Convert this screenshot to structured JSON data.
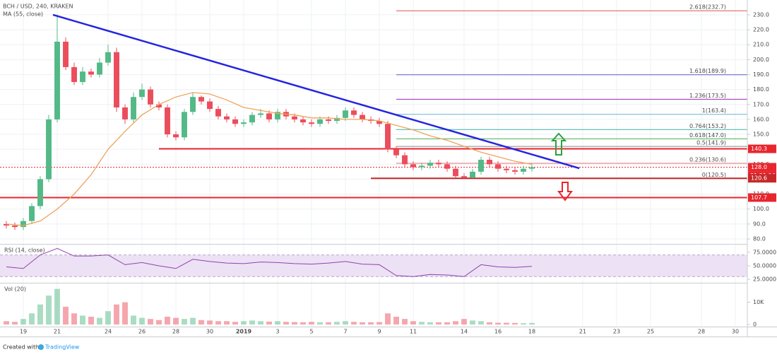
{
  "chart_data": [
    {
      "type": "candlestick",
      "title": "BCH / USD, 240, KRAKEN",
      "x": [
        -1,
        -0.5,
        0,
        0.5,
        1,
        1.5,
        2,
        2.5,
        3,
        3.5,
        4,
        4.5,
        5,
        5.5,
        6,
        6.5,
        7,
        7.5,
        8,
        8.5,
        9,
        9.5,
        10,
        10.5,
        11,
        11.5,
        12,
        12.5,
        13,
        13.5,
        14,
        14.5,
        15,
        15.5,
        16,
        16.5,
        17,
        17.5,
        18,
        18.5,
        19,
        19.5,
        20,
        20.5,
        21,
        21.5,
        22,
        22.5,
        23,
        23.5,
        24,
        24.5,
        25,
        25.5,
        26,
        26.5,
        27,
        27.5,
        28,
        28.5,
        29,
        29.5,
        30
      ],
      "open": [
        90,
        89,
        88,
        92,
        102,
        120,
        160,
        212,
        195,
        185,
        192,
        190,
        198,
        205,
        168,
        160,
        175,
        180,
        170,
        168,
        150,
        148,
        165,
        175,
        172,
        167,
        162,
        160,
        157,
        158,
        163,
        164,
        160,
        165,
        162,
        160,
        158,
        157,
        160,
        159,
        161,
        166,
        163,
        160,
        159,
        157,
        140,
        136,
        130,
        128,
        129,
        131,
        130,
        127,
        122,
        121,
        125,
        133,
        130,
        127,
        126,
        125,
        127
      ],
      "high": [
        92,
        91,
        94,
        104,
        122,
        163,
        230,
        215,
        198,
        195,
        194,
        201,
        210,
        208,
        170,
        178,
        184,
        182,
        172,
        170,
        152,
        167,
        178,
        176,
        174,
        169,
        164,
        162,
        160,
        165,
        167,
        166,
        167,
        167,
        164,
        162,
        160,
        162,
        162,
        163,
        168,
        168,
        165,
        162,
        161,
        159,
        142,
        138,
        132,
        131,
        133,
        133,
        132,
        129,
        124,
        127,
        135,
        135,
        132,
        129,
        128,
        129,
        130
      ],
      "low": [
        87,
        86,
        86,
        90,
        100,
        118,
        158,
        193,
        183,
        183,
        188,
        188,
        196,
        165,
        157,
        158,
        173,
        168,
        166,
        148,
        146,
        146,
        163,
        170,
        165,
        160,
        158,
        155,
        155,
        156,
        161,
        158,
        158,
        160,
        158,
        156,
        155,
        155,
        157,
        157,
        159,
        161,
        158,
        157,
        155,
        138,
        134,
        128,
        126,
        126,
        127,
        128,
        125,
        121,
        120.5,
        120.6,
        123,
        128,
        125,
        124,
        123,
        123,
        125
      ],
      "close": [
        89,
        88,
        92,
        102,
        120,
        160,
        212,
        195,
        185,
        192,
        190,
        198,
        205,
        168,
        160,
        175,
        180,
        170,
        168,
        150,
        148,
        165,
        175,
        172,
        167,
        162,
        160,
        157,
        158,
        163,
        164,
        160,
        165,
        162,
        160,
        158,
        157,
        160,
        159,
        161,
        166,
        163,
        160,
        159,
        157,
        140,
        136,
        130,
        128,
        129,
        131,
        130,
        127,
        122,
        121,
        125,
        133,
        130,
        127,
        126,
        125,
        127,
        128
      ],
      "colors": {
        "up": "#53b987",
        "down": "#eb4d5c"
      },
      "ma": {
        "name": "MA (55, close)",
        "color": "#f0a35a",
        "x": [
          -1,
          0,
          1,
          2,
          3,
          4,
          5,
          6,
          7,
          8,
          9,
          10,
          11,
          12,
          13,
          14,
          15,
          16,
          17,
          18,
          19,
          20,
          21,
          22,
          23,
          24,
          25,
          26,
          27,
          28,
          29,
          30
        ],
        "values": [
          90,
          89,
          92,
          100,
          110,
          123,
          140,
          152,
          163,
          170,
          175,
          178,
          177,
          173,
          168,
          166,
          164,
          163,
          161,
          161,
          160,
          160,
          159,
          156,
          153,
          149,
          146,
          142,
          138,
          135,
          132,
          130
        ]
      },
      "trendline": {
        "color": "#2424e0",
        "x": [
          1.75,
          32.8
        ],
        "values": [
          230,
          127.3
        ]
      },
      "levels": [
        {
          "value": 140.3,
          "label": "140.3",
          "color": "#e8262e",
          "from": 8
        },
        {
          "value": 128.0,
          "label": "128.0",
          "color": "#e8262e",
          "countdown": "01:21:16",
          "from": -1.375
        },
        {
          "value": 120.6,
          "label": "120.6",
          "color": "#c62828",
          "from": 20.5
        },
        {
          "value": 107.7,
          "label": "107.7",
          "color": "#e8262e",
          "from": -1.375
        }
      ],
      "fib": [
        {
          "label": "2.618(232.7)",
          "value": 232.7,
          "color": "#e0544f"
        },
        {
          "label": "1.618(189.9)",
          "value": 189.9,
          "color": "#5b5bc9"
        },
        {
          "label": "1.236(173.5)",
          "value": 173.5,
          "color": "#9c27b0"
        },
        {
          "label": "1(163.4)",
          "value": 163.4,
          "color": "#65b6d6"
        },
        {
          "label": "0.764(153.2)",
          "value": 153.2,
          "color": "#3bb3a5"
        },
        {
          "label": "0.618(147.0)",
          "value": 147.0,
          "color": "#4caf50"
        },
        {
          "label": "0.5(141.9)",
          "value": 141.9,
          "color": "#888888"
        },
        {
          "label": "0.236(130.6)",
          "value": 130.6,
          "color": "#e57373"
        },
        {
          "label": "0(120.5)",
          "value": 120.5,
          "color": "#888888"
        }
      ],
      "xlim": [
        -1.375,
        42.708
      ],
      "ylim": [
        76.7,
        239.9
      ],
      "yticks": [
        {
          "value": 80,
          "label": "80.0"
        },
        {
          "value": 90,
          "label": "90.0"
        },
        {
          "value": 100,
          "label": "100.0"
        },
        {
          "value": 110,
          "label": "110.0"
        },
        {
          "value": 120,
          "label": "120.0"
        },
        {
          "value": 130,
          "label": "130.0"
        },
        {
          "value": 140,
          "label": "140.0"
        },
        {
          "value": 150,
          "label": "150.0"
        },
        {
          "value": 160,
          "label": "160.0"
        },
        {
          "value": 170,
          "label": "170.0"
        },
        {
          "value": 180,
          "label": "180.0"
        },
        {
          "value": 190,
          "label": "190.0"
        },
        {
          "value": 200,
          "label": "200.0"
        },
        {
          "value": 210,
          "label": "210.0"
        },
        {
          "value": 220,
          "label": "220.0"
        },
        {
          "value": 230,
          "label": "230.0"
        }
      ],
      "xticks": [
        {
          "value": 0,
          "label": "19"
        },
        {
          "value": 2,
          "label": "21"
        },
        {
          "value": 5,
          "label": "24"
        },
        {
          "value": 7,
          "label": "26"
        },
        {
          "value": 9,
          "label": "28"
        },
        {
          "value": 11,
          "label": "30"
        },
        {
          "value": 13,
          "label": "2019"
        },
        {
          "value": 15,
          "label": "3"
        },
        {
          "value": 17,
          "label": "5"
        },
        {
          "value": 19,
          "label": "7"
        },
        {
          "value": 21,
          "label": "9"
        },
        {
          "value": 23,
          "label": "11"
        },
        {
          "value": 26,
          "label": "14"
        },
        {
          "value": 28,
          "label": "16"
        },
        {
          "value": 30,
          "label": "18"
        },
        {
          "value": 33,
          "label": "21"
        },
        {
          "value": 35,
          "label": "23"
        },
        {
          "value": 37,
          "label": "25"
        },
        {
          "value": 40,
          "label": "28"
        },
        {
          "value": 42,
          "label": "30"
        }
      ],
      "grid": true
    },
    {
      "type": "line",
      "title": "RSI (14, close)",
      "color": "#8e44ad",
      "band": [
        30,
        70
      ],
      "band_color": "#ede1f5",
      "x": [
        -1,
        0,
        1,
        2,
        3,
        4,
        5,
        6,
        7,
        8,
        9,
        10,
        11,
        12,
        13,
        14,
        15,
        16,
        17,
        18,
        19,
        20,
        21,
        22,
        23,
        24,
        25,
        26,
        27,
        28,
        29,
        30
      ],
      "values": [
        48,
        45,
        70,
        82,
        68,
        68,
        70,
        52,
        56,
        50,
        45,
        62,
        58,
        55,
        54,
        57,
        56,
        54,
        53,
        55,
        58,
        53,
        52,
        32,
        30,
        34,
        33,
        30,
        52,
        48,
        47,
        49
      ],
      "ylim": [
        18.6,
        89.1
      ],
      "yticks": [
        {
          "value": 25,
          "label": "25.0000"
        },
        {
          "value": 50,
          "label": "50.0000"
        },
        {
          "value": 75,
          "label": "75.0000"
        }
      ]
    },
    {
      "type": "bar",
      "title": "Vol (20)",
      "values": [
        1500,
        1200,
        2500,
        5000,
        9000,
        13000,
        16000,
        8000,
        5000,
        4000,
        3500,
        3000,
        6000,
        9000,
        10000,
        4000,
        3000,
        2500,
        2000,
        3500,
        3000,
        2500,
        3000,
        2000,
        1800,
        1500,
        1500,
        1200,
        1500,
        1800,
        1500,
        1300,
        1500,
        1200,
        1100,
        1000,
        1200,
        1000,
        1000,
        1200,
        1500,
        1200,
        1000,
        1000,
        1100,
        5000,
        3500,
        2500,
        1500,
        1200,
        1000,
        1000,
        1000,
        1500,
        2500,
        1800,
        1500,
        1000,
        800,
        800,
        700,
        600,
        700
      ],
      "ylim": [
        -940,
        18440
      ],
      "yticks": [
        {
          "value": 0,
          "label": "0"
        },
        {
          "value": 10000,
          "label": "10K"
        }
      ]
    }
  ],
  "footer": {
    "created_with": "Created with",
    "brand": "TradingView"
  }
}
